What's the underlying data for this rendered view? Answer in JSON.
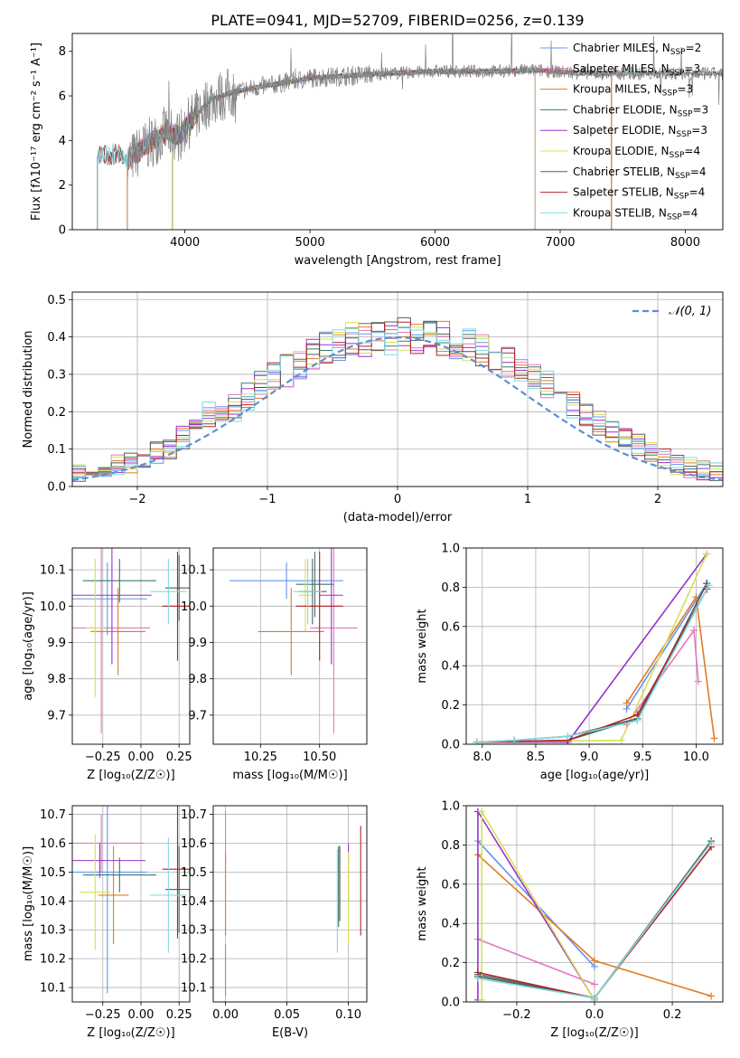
{
  "figure": {
    "title": "PLATE=0941, MJD=52709, FIBERID=0256, z=0.139"
  },
  "colors": {
    "Chabrier MILES": "#6495ed",
    "Salpeter MILES": "#e377c2",
    "Kroupa MILES": "#e07b22",
    "Chabrier ELODIE": "#3a7a70",
    "Salpeter ELODIE": "#9932cc",
    "Kroupa ELODIE": "#d4e157",
    "Chabrier STELIB": "#5a5a5a",
    "Salpeter STELIB": "#b22222",
    "Kroupa STELIB": "#7fdbe0",
    "normal": "#5b8fd6",
    "grid": "#b0b0b0"
  },
  "chart_data": [
    {
      "id": "spectrum",
      "type": "line",
      "xlabel": "wavelength [Angstrom, rest frame]",
      "xlim": [
        3100,
        8300
      ],
      "ylim": [
        0,
        8.8
      ],
      "xticks": [
        4000,
        5000,
        6000,
        7000,
        8000
      ],
      "yticks": [
        0,
        2,
        4,
        6,
        8
      ],
      "grid": false,
      "legend_position": "right",
      "legend": [
        {
          "label": "Chabrier MILES, N",
          "sub": "SSP",
          "suffix": "=2",
          "model": "Chabrier MILES"
        },
        {
          "label": "Salpeter MILES, N",
          "sub": "SSP",
          "suffix": "=3",
          "model": "Salpeter MILES"
        },
        {
          "label": "Kroupa MILES, N",
          "sub": "SSP",
          "suffix": "=3",
          "model": "Kroupa MILES"
        },
        {
          "label": "Chabrier ELODIE, N",
          "sub": "SSP",
          "suffix": "=3",
          "model": "Chabrier ELODIE"
        },
        {
          "label": "Salpeter ELODIE, N",
          "sub": "SSP",
          "suffix": "=3",
          "model": "Salpeter ELODIE"
        },
        {
          "label": "Kroupa ELODIE, N",
          "sub": "SSP",
          "suffix": "=4",
          "model": "Kroupa ELODIE"
        },
        {
          "label": "Chabrier STELIB, N",
          "sub": "SSP",
          "suffix": "=4",
          "model": "Chabrier STELIB"
        },
        {
          "label": "Salpeter STELIB, N",
          "sub": "SSP",
          "suffix": "=4",
          "model": "Salpeter STELIB"
        },
        {
          "label": "Kroupa STELIB, N",
          "sub": "SSP",
          "suffix": "=4",
          "model": "Kroupa STELIB"
        }
      ],
      "continuum": {
        "x": [
          3300,
          3450,
          3550,
          3700,
          3850,
          3950,
          4050,
          4200,
          4400,
          4700,
          5000,
          5300,
          5600,
          6000,
          6400,
          6800,
          7100,
          7300,
          7600,
          8000,
          8300
        ],
        "y": [
          3.3,
          3.4,
          3.1,
          3.8,
          4.4,
          4.2,
          4.9,
          5.8,
          6.2,
          6.5,
          6.8,
          6.9,
          7.0,
          7.1,
          7.1,
          7.15,
          7.05,
          7.0,
          7.0,
          7.0,
          7.0
        ]
      },
      "model_ranges": [
        {
          "model": "Chabrier MILES",
          "x": [
            3540,
            7410
          ]
        },
        {
          "model": "Salpeter MILES",
          "x": [
            3540,
            7410
          ]
        },
        {
          "model": "Kroupa MILES",
          "x": [
            3540,
            7410
          ]
        },
        {
          "model": "Chabrier ELODIE",
          "x": [
            3900,
            6800
          ]
        },
        {
          "model": "Salpeter ELODIE",
          "x": [
            3900,
            6800
          ]
        },
        {
          "model": "Kroupa ELODIE",
          "x": [
            3900,
            6800
          ]
        },
        {
          "model": "Chabrier STELIB",
          "x": [
            3300,
            8300
          ]
        },
        {
          "model": "Salpeter STELIB",
          "x": [
            3300,
            8300
          ]
        },
        {
          "model": "Kroupa STELIB",
          "x": [
            3300,
            8300
          ]
        }
      ]
    },
    {
      "id": "residuals",
      "type": "histogram",
      "xlabel": "(data-model)/error",
      "ylabel": "Normed distribution",
      "xlim": [
        -2.5,
        2.5
      ],
      "ylim": [
        0,
        0.52
      ],
      "xticks": [
        -2,
        -1,
        0,
        1,
        2
      ],
      "yticks": [
        0.0,
        0.1,
        0.2,
        0.3,
        0.4,
        0.5
      ],
      "grid": true,
      "bin_width": 0.1,
      "legend_position": "top-right",
      "normal_label": "𝒩(0, 1)",
      "base": [
        0.02,
        0.025,
        0.03,
        0.035,
        0.04,
        0.05,
        0.055,
        0.06,
        0.065,
        0.075,
        0.09,
        0.105,
        0.13,
        0.16,
        0.19,
        0.2,
        0.21,
        0.24,
        0.27,
        0.29,
        0.31,
        0.33,
        0.35,
        0.37,
        0.38,
        0.39,
        0.395,
        0.4,
        0.4,
        0.405,
        0.4,
        0.4,
        0.395,
        0.39,
        0.375,
        0.36,
        0.35,
        0.33,
        0.31,
        0.29,
        0.27,
        0.24,
        0.22,
        0.19,
        0.17,
        0.15,
        0.13,
        0.11,
        0.09,
        0.075,
        0.06,
        0.05,
        0.045,
        0.04,
        0.035,
        0.03,
        0.028,
        0.025
      ]
    },
    {
      "id": "z_age",
      "type": "scatter",
      "xlabel": "Z [log₁₀(Z/Z☉)]",
      "ylabel": "age  [log₁₀(age/yr)]",
      "xlim": [
        -0.45,
        0.32
      ],
      "ylim": [
        9.62,
        10.16
      ],
      "xticks": [
        -0.25,
        0.0,
        0.25
      ],
      "xticklabels": [
        "−0.25",
        "0.00",
        "0.25"
      ],
      "yticks": [
        9.7,
        9.8,
        9.9,
        10.0,
        10.1
      ],
      "grid": true,
      "points": [
        {
          "model": "Chabrier MILES",
          "x": -0.22,
          "xerr": 0.26,
          "y": 10.02,
          "yerr": 0.1
        },
        {
          "model": "Salpeter MILES",
          "x": -0.26,
          "xerr": 0.32,
          "y": 9.94,
          "yerr": 0.29
        },
        {
          "model": "Kroupa MILES",
          "x": -0.15,
          "xerr": 0.18,
          "y": 9.93,
          "yerr": 0.12
        },
        {
          "model": "Chabrier ELODIE",
          "x": -0.14,
          "xerr": 0.24,
          "y": 10.07,
          "yerr": 0.06
        },
        {
          "model": "Salpeter ELODIE",
          "x": -0.19,
          "xerr": 0.26,
          "y": 10.03,
          "yerr": 0.19
        },
        {
          "model": "Kroupa ELODIE",
          "x": -0.3,
          "xerr": 0.06,
          "y": 9.94,
          "yerr": 0.19
        },
        {
          "model": "Chabrier STELIB",
          "x": 0.25,
          "xerr": 0.09,
          "y": 10.05,
          "yerr": 0.09
        },
        {
          "model": "Salpeter STELIB",
          "x": 0.24,
          "xerr": 0.1,
          "y": 10.0,
          "yerr": 0.15
        },
        {
          "model": "Kroupa STELIB",
          "x": 0.18,
          "xerr": 0.12,
          "y": 10.04,
          "yerr": 0.09
        }
      ]
    },
    {
      "id": "mass_age",
      "type": "scatter",
      "xlabel": "mass [log₁₀(M/M☉)]",
      "xlim": [
        10.05,
        10.7
      ],
      "ylim": [
        9.62,
        10.16
      ],
      "xticks": [
        10.25,
        10.5
      ],
      "xticklabels": [
        "10.25",
        "10.50"
      ],
      "yticks": [
        9.7,
        9.8,
        9.9,
        10.0,
        10.1
      ],
      "grid": true,
      "points": [
        {
          "model": "Chabrier MILES",
          "x": 10.36,
          "xerr": 0.24,
          "y": 10.07,
          "yerr": 0.05
        },
        {
          "model": "Salpeter MILES",
          "x": 10.56,
          "xerr": 0.1,
          "y": 9.94,
          "yerr": 0.29
        },
        {
          "model": "Kroupa MILES",
          "x": 10.38,
          "xerr": 0.14,
          "y": 9.93,
          "yerr": 0.12
        },
        {
          "model": "Chabrier ELODIE",
          "x": 10.48,
          "xerr": 0.08,
          "y": 10.06,
          "yerr": 0.09
        },
        {
          "model": "Salpeter ELODIE",
          "x": 10.55,
          "xerr": 0.05,
          "y": 10.03,
          "yerr": 0.19
        },
        {
          "model": "Kroupa ELODIE",
          "x": 10.44,
          "xerr": 0.03,
          "y": 10.03,
          "yerr": 0.1
        },
        {
          "model": "Chabrier STELIB",
          "x": 10.47,
          "xerr": 0.06,
          "y": 10.04,
          "yerr": 0.09
        },
        {
          "model": "Salpeter STELIB",
          "x": 10.5,
          "xerr": 0.1,
          "y": 10.0,
          "yerr": 0.15
        },
        {
          "model": "Kroupa STELIB",
          "x": 10.45,
          "xerr": 0.06,
          "y": 10.04,
          "yerr": 0.09
        }
      ]
    },
    {
      "id": "age_weight",
      "type": "line",
      "xlabel": "age  [log₁₀(age/yr)]",
      "ylabel": "mass weight",
      "xlim": [
        7.85,
        10.25
      ],
      "ylim": [
        0,
        1.0
      ],
      "xticks": [
        8.0,
        8.5,
        9.0,
        9.5,
        10.0
      ],
      "xticklabels": [
        "8.0",
        "8.5",
        "9.0",
        "9.5",
        "10.0"
      ],
      "yticks": [
        0.0,
        0.2,
        0.4,
        0.6,
        0.8,
        1.0
      ],
      "grid": true,
      "series": [
        {
          "model": "Chabrier MILES",
          "x": [
            9.35,
            10.1
          ],
          "y": [
            0.18,
            0.82
          ]
        },
        {
          "model": "Salpeter MILES",
          "x": [
            9.35,
            9.98,
            10.02
          ],
          "y": [
            0.1,
            0.58,
            0.32
          ]
        },
        {
          "model": "Kroupa MILES",
          "x": [
            9.35,
            10.0,
            10.17
          ],
          "y": [
            0.21,
            0.75,
            0.03
          ]
        },
        {
          "model": "Chabrier ELODIE",
          "x": [
            7.95,
            8.8,
            9.45,
            10.1
          ],
          "y": [
            0.01,
            0.02,
            0.13,
            0.82
          ]
        },
        {
          "model": "Salpeter ELODIE",
          "x": [
            7.95,
            8.8,
            10.1
          ],
          "y": [
            0.01,
            0.01,
            0.97
          ]
        },
        {
          "model": "Kroupa ELODIE",
          "x": [
            7.95,
            9.3,
            10.1
          ],
          "y": [
            0.01,
            0.02,
            0.97
          ]
        },
        {
          "model": "Chabrier STELIB",
          "x": [
            7.95,
            8.3,
            8.8,
            9.45,
            10.1
          ],
          "y": [
            0.01,
            0.02,
            0.04,
            0.13,
            0.82
          ]
        },
        {
          "model": "Salpeter STELIB",
          "x": [
            7.95,
            8.8,
            9.45,
            10.1
          ],
          "y": [
            0.01,
            0.02,
            0.15,
            0.79
          ]
        },
        {
          "model": "Kroupa STELIB",
          "x": [
            7.95,
            8.3,
            8.8,
            9.45,
            10.12
          ],
          "y": [
            0.01,
            0.02,
            0.04,
            0.12,
            0.81
          ]
        }
      ]
    },
    {
      "id": "z_mass",
      "type": "scatter",
      "xlabel": "Z [log₁₀(Z/Z☉)]",
      "ylabel": "mass [log₁₀(M/M☉)]",
      "xlim": [
        -0.45,
        0.32
      ],
      "ylim": [
        10.05,
        10.73
      ],
      "xticks": [
        -0.25,
        0.0,
        0.25
      ],
      "xticklabels": [
        "−0.25",
        "0.00",
        "0.25"
      ],
      "yticks": [
        10.1,
        10.2,
        10.3,
        10.4,
        10.5,
        10.6,
        10.7
      ],
      "grid": true,
      "points": [
        {
          "model": "Chabrier MILES",
          "x": -0.22,
          "xerr": 0.26,
          "y": 10.5,
          "yerr": 0.42
        },
        {
          "model": "Salpeter MILES",
          "x": -0.26,
          "xerr": 0.28,
          "y": 10.6,
          "yerr": 0.1
        },
        {
          "model": "Kroupa MILES",
          "x": -0.18,
          "xerr": 0.1,
          "y": 10.42,
          "yerr": 0.17
        },
        {
          "model": "Chabrier ELODIE",
          "x": -0.14,
          "xerr": 0.24,
          "y": 10.49,
          "yerr": 0.06
        },
        {
          "model": "Salpeter ELODIE",
          "x": -0.27,
          "xerr": 0.3,
          "y": 10.54,
          "yerr": 0.06
        },
        {
          "model": "Kroupa ELODIE",
          "x": -0.3,
          "xerr": 0.1,
          "y": 10.43,
          "yerr": 0.2
        },
        {
          "model": "Chabrier STELIB",
          "x": 0.25,
          "xerr": 0.09,
          "y": 10.44,
          "yerr": 0.15
        },
        {
          "model": "Salpeter STELIB",
          "x": 0.24,
          "xerr": 0.1,
          "y": 10.51,
          "yerr": 0.24
        },
        {
          "model": "Kroupa STELIB",
          "x": 0.18,
          "xerr": 0.12,
          "y": 10.42,
          "yerr": 0.2
        }
      ]
    },
    {
      "id": "ebv_mass",
      "type": "scatter",
      "xlabel": "E(B-V)",
      "xlim": [
        -0.01,
        0.115
      ],
      "ylim": [
        10.05,
        10.73
      ],
      "xticks": [
        0.0,
        0.05,
        0.1
      ],
      "xticklabels": [
        "0.00",
        "0.05",
        "0.10"
      ],
      "yticks": [
        10.1,
        10.2,
        10.3,
        10.4,
        10.5,
        10.6,
        10.7
      ],
      "grid": true,
      "points": [
        {
          "model": "Chabrier MILES",
          "x": 0.0,
          "xerr": 0.0,
          "y": 10.16,
          "yerr": 0.09
        },
        {
          "model": "Salpeter MILES",
          "x": 0.0,
          "xerr": 0.0,
          "y": 10.62,
          "yerr": 0.09
        },
        {
          "model": "Kroupa MILES",
          "x": 0.0,
          "xerr": 0.0,
          "y": 10.42,
          "yerr": 0.14
        },
        {
          "model": "Chabrier ELODIE",
          "x": 0.092,
          "xerr": 0.0,
          "y": 10.45,
          "yerr": 0.14
        },
        {
          "model": "Salpeter ELODIE",
          "x": 0.1,
          "xerr": 0.0,
          "y": 10.5,
          "yerr": 0.1
        },
        {
          "model": "Kroupa ELODIE",
          "x": 0.1,
          "xerr": 0.0,
          "y": 10.41,
          "yerr": 0.16
        },
        {
          "model": "Chabrier STELIB",
          "x": 0.093,
          "xerr": 0.0,
          "y": 10.46,
          "yerr": 0.13
        },
        {
          "model": "Salpeter STELIB",
          "x": 0.11,
          "xerr": 0.0,
          "y": 10.47,
          "yerr": 0.19
        },
        {
          "model": "Kroupa STELIB",
          "x": 0.091,
          "xerr": 0.0,
          "y": 10.4,
          "yerr": 0.18
        }
      ]
    },
    {
      "id": "z_weight",
      "type": "line",
      "xlabel": "Z [log₁₀(Z/Z☉)]",
      "ylabel": "mass weight",
      "xlim": [
        -0.33,
        0.33
      ],
      "ylim": [
        0,
        1.0
      ],
      "xticks": [
        -0.2,
        0.0,
        0.2
      ],
      "xticklabels": [
        "−0.2",
        "0.0",
        "0.2"
      ],
      "yticks": [
        0.0,
        0.2,
        0.4,
        0.6,
        0.8,
        1.0
      ],
      "grid": true,
      "series": [
        {
          "model": "Chabrier MILES",
          "x": [
            -0.3,
            0.0
          ],
          "y": [
            0.82,
            0.18
          ]
        },
        {
          "model": "Salpeter MILES",
          "x": [
            -0.3,
            0.0
          ],
          "y": [
            0.32,
            0.09
          ]
        },
        {
          "model": "Kroupa MILES",
          "x": [
            -0.3,
            0.0,
            0.3
          ],
          "y": [
            0.75,
            0.21,
            0.03
          ]
        },
        {
          "model": "Chabrier ELODIE",
          "x": [
            -0.3,
            0.0,
            0.3
          ],
          "y": [
            0.14,
            0.02,
            0.82
          ]
        },
        {
          "model": "Salpeter ELODIE",
          "x": [
            -0.3,
            -0.3,
            0.0
          ],
          "y": [
            0.01,
            0.97,
            0.01
          ]
        },
        {
          "model": "Kroupa ELODIE",
          "x": [
            -0.29,
            -0.29,
            0.0
          ],
          "y": [
            0.01,
            0.97,
            0.01
          ]
        },
        {
          "model": "Chabrier STELIB",
          "x": [
            -0.3,
            0.0,
            0.3
          ],
          "y": [
            0.13,
            0.02,
            0.82
          ]
        },
        {
          "model": "Salpeter STELIB",
          "x": [
            -0.3,
            0.0,
            0.3
          ],
          "y": [
            0.15,
            0.02,
            0.79
          ]
        },
        {
          "model": "Kroupa STELIB",
          "x": [
            -0.3,
            0.0,
            0.3
          ],
          "y": [
            0.12,
            0.02,
            0.81
          ]
        }
      ]
    }
  ]
}
